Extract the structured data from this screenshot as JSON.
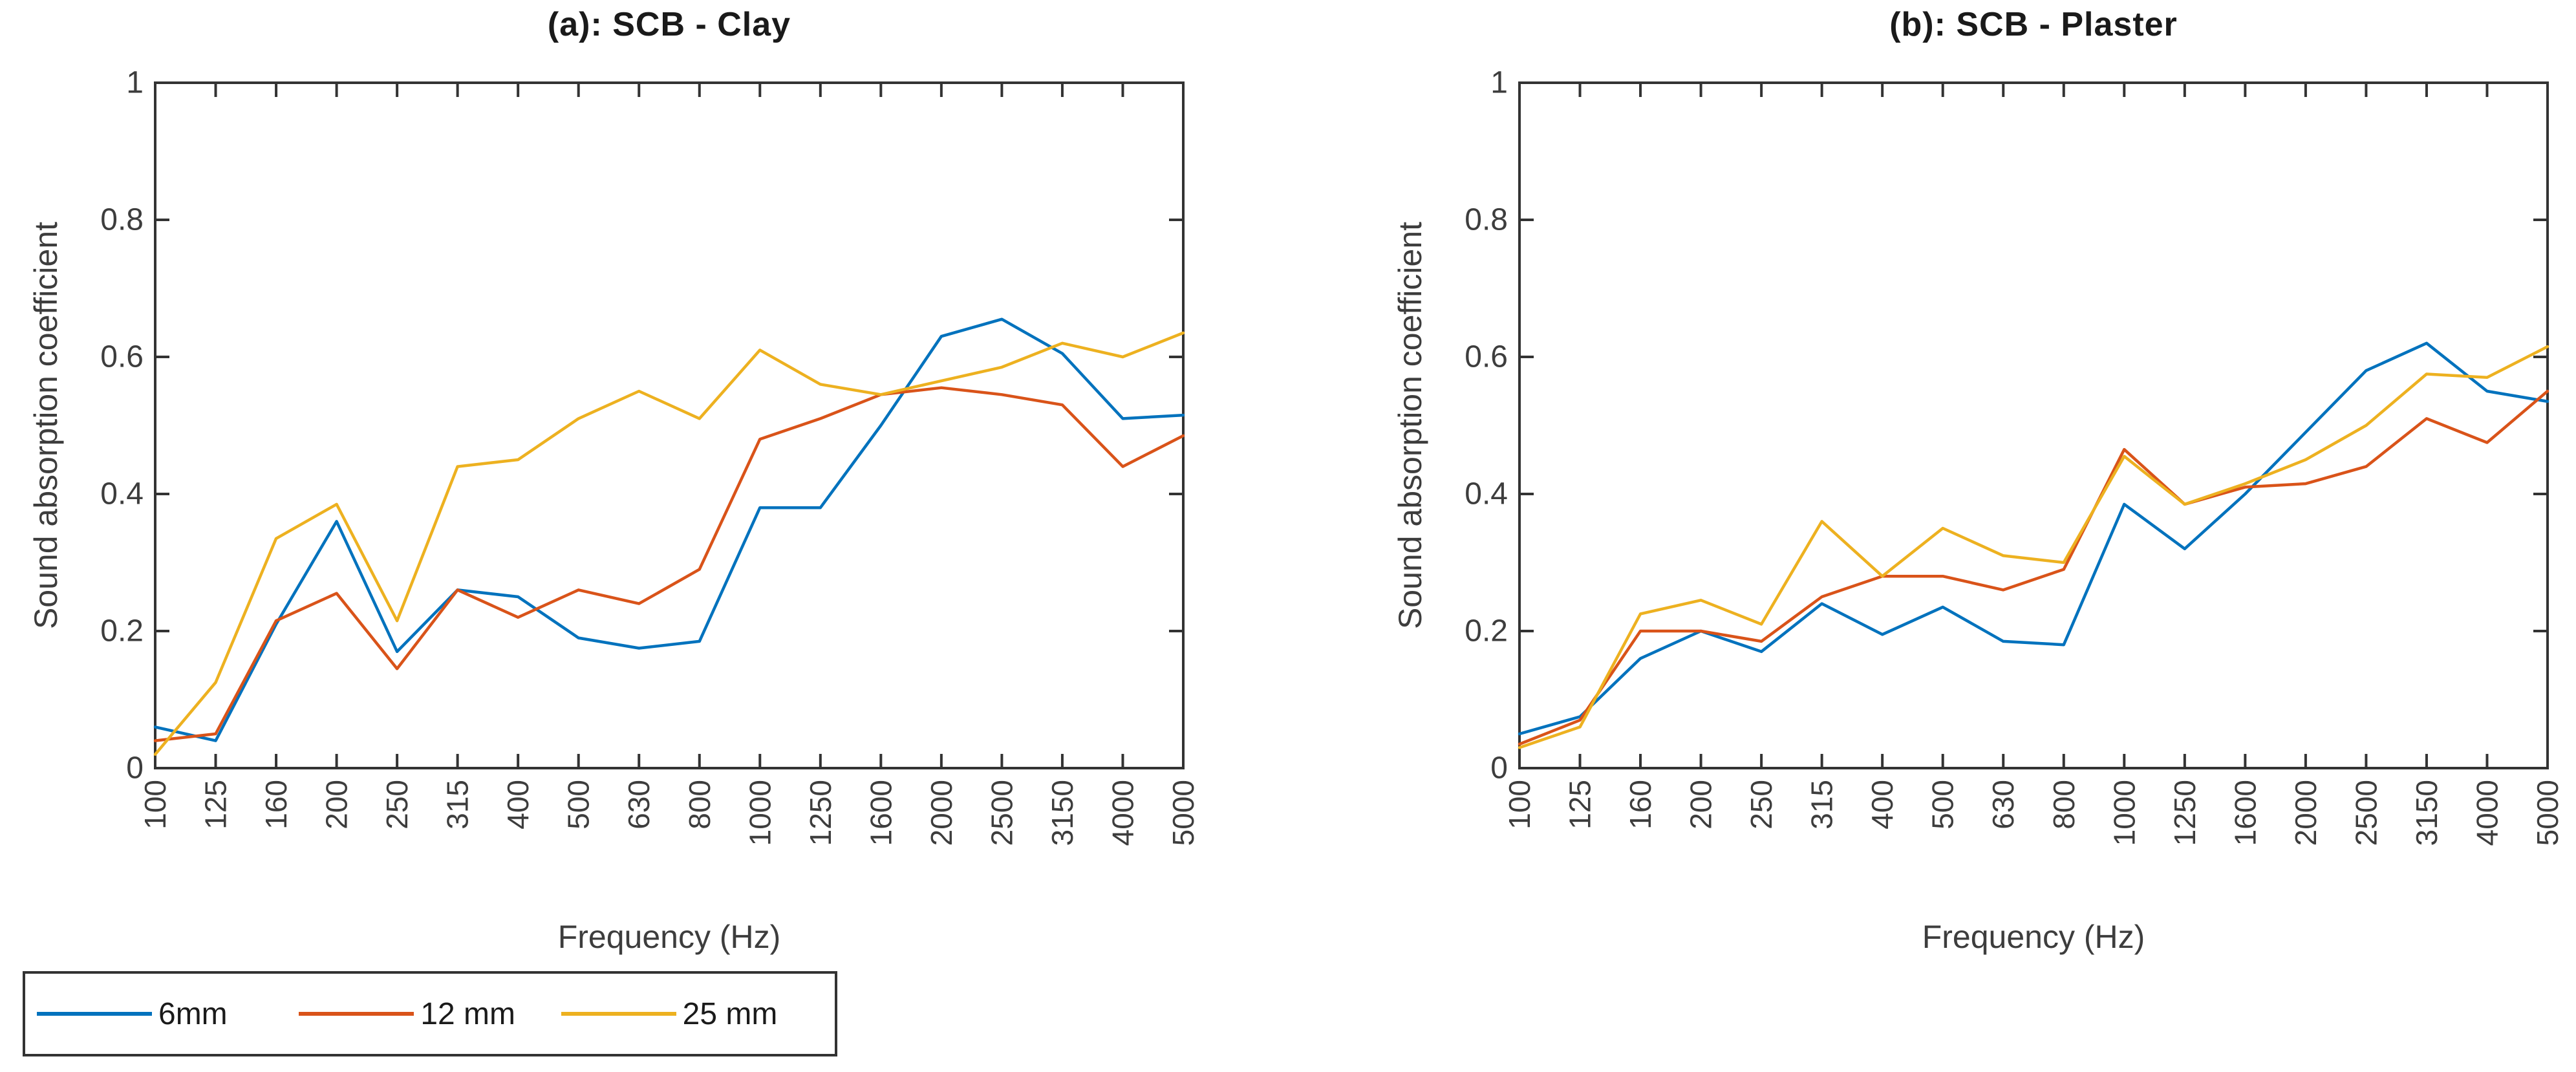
{
  "figure": {
    "background": "#ffffff",
    "axis_color": "#333333",
    "tick_text_color": "#3d3d3d"
  },
  "legend": {
    "items": [
      {
        "label": "6mm",
        "color": "#0072BD"
      },
      {
        "label": "12 mm",
        "color": "#D95319"
      },
      {
        "label": "25 mm",
        "color": "#EDB120"
      }
    ]
  },
  "chart_data": [
    {
      "type": "line",
      "title": "(a): SCB - Clay",
      "xlabel": "Frequency (Hz)",
      "ylabel": "Sound absorption coefficient",
      "ylim": [
        0,
        1
      ],
      "yticks": [
        0,
        0.2,
        0.4,
        0.6,
        0.8,
        1
      ],
      "grid": false,
      "legend_position": "below-left",
      "categories": [
        "100",
        "125",
        "160",
        "200",
        "250",
        "315",
        "400",
        "500",
        "630",
        "800",
        "1000",
        "1250",
        "1600",
        "2000",
        "2500",
        "3150",
        "4000",
        "5000"
      ],
      "series": [
        {
          "name": "6mm",
          "color": "#0072BD",
          "values": [
            0.06,
            0.04,
            0.21,
            0.36,
            0.17,
            0.26,
            0.25,
            0.19,
            0.175,
            0.185,
            0.38,
            0.38,
            0.5,
            0.63,
            0.655,
            0.605,
            0.51,
            0.515
          ]
        },
        {
          "name": "12 mm",
          "color": "#D95319",
          "values": [
            0.04,
            0.05,
            0.215,
            0.255,
            0.145,
            0.26,
            0.22,
            0.26,
            0.24,
            0.29,
            0.48,
            0.51,
            0.545,
            0.555,
            0.545,
            0.53,
            0.44,
            0.485
          ]
        },
        {
          "name": "25 mm",
          "color": "#EDB120",
          "values": [
            0.02,
            0.125,
            0.335,
            0.385,
            0.215,
            0.44,
            0.45,
            0.51,
            0.55,
            0.51,
            0.61,
            0.56,
            0.545,
            0.565,
            0.585,
            0.62,
            0.6,
            0.635
          ]
        }
      ]
    },
    {
      "type": "line",
      "title": "(b): SCB - Plaster",
      "xlabel": "Frequency (Hz)",
      "ylabel": "Sound absorption coefficient",
      "ylim": [
        0,
        1
      ],
      "yticks": [
        0,
        0.2,
        0.4,
        0.6,
        0.8,
        1
      ],
      "grid": false,
      "categories": [
        "100",
        "125",
        "160",
        "200",
        "250",
        "315",
        "400",
        "500",
        "630",
        "800",
        "1000",
        "1250",
        "1600",
        "2000",
        "2500",
        "3150",
        "4000",
        "5000"
      ],
      "series": [
        {
          "name": "6mm",
          "color": "#0072BD",
          "values": [
            0.05,
            0.075,
            0.16,
            0.2,
            0.17,
            0.24,
            0.195,
            0.235,
            0.185,
            0.18,
            0.385,
            0.32,
            0.4,
            0.49,
            0.58,
            0.62,
            0.55,
            0.535
          ]
        },
        {
          "name": "12 mm",
          "color": "#D95319",
          "values": [
            0.035,
            0.07,
            0.2,
            0.2,
            0.185,
            0.25,
            0.28,
            0.28,
            0.26,
            0.29,
            0.465,
            0.385,
            0.41,
            0.415,
            0.44,
            0.51,
            0.475,
            0.55
          ]
        },
        {
          "name": "25 mm",
          "color": "#EDB120",
          "values": [
            0.03,
            0.06,
            0.225,
            0.245,
            0.21,
            0.36,
            0.28,
            0.35,
            0.31,
            0.3,
            0.455,
            0.385,
            0.415,
            0.45,
            0.5,
            0.575,
            0.57,
            0.615
          ]
        }
      ]
    }
  ]
}
